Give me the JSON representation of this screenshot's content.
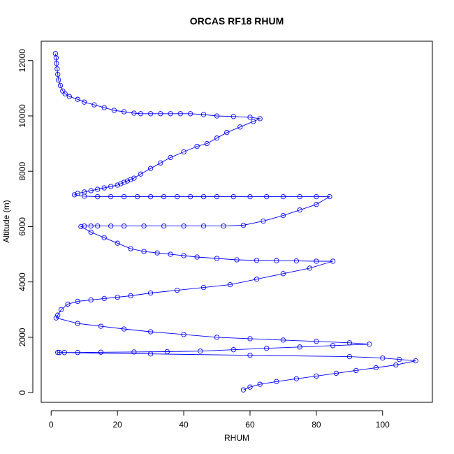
{
  "chart_data": {
    "type": "line",
    "title": "ORCAS RF18 RHUM",
    "xlabel": "RHUM",
    "ylabel": "Altitude (m)",
    "xlim": [
      -3,
      115
    ],
    "ylim": [
      -350,
      12700
    ],
    "x_ticks": [
      0,
      20,
      40,
      60,
      80,
      100
    ],
    "y_ticks": [
      0,
      2000,
      4000,
      6000,
      8000,
      10000,
      12000
    ],
    "grid": false,
    "legend": "none",
    "marker": "open-circle",
    "color": "#0000ff",
    "series": [
      {
        "x": [
          1.3,
          1.5,
          1.6,
          1.8,
          2.0,
          2.2,
          2.8,
          3.5,
          4.2,
          5.5,
          8.0,
          10.0,
          13.0,
          16.0,
          19.0,
          22.0,
          25.0,
          27.0,
          30.0,
          33.0,
          36.0,
          39.0,
          42.0,
          46.0,
          50.0,
          55.0,
          60.0,
          63.0,
          61.0,
          57.0,
          53.0,
          50.0,
          47.0,
          44.0,
          40.0,
          36.0,
          33.0,
          30.0,
          27.0,
          25.0,
          24.0,
          23.0,
          22.0,
          21.0,
          20.0,
          18.0,
          16.0,
          14.0,
          12.0,
          10.0,
          8.0,
          7.0,
          10.0,
          14.0,
          18.0,
          22.0,
          26.0,
          30.0,
          34.0,
          38.0,
          42.0,
          46.0,
          50.0,
          55.0,
          60.0,
          65.0,
          70.0,
          75.0,
          80.0,
          84.0,
          80.0,
          75.0,
          70.0,
          64.0,
          58.0,
          52.0,
          46.0,
          40.0,
          34.0,
          28.0,
          22.0,
          18.0,
          14.0,
          12.0,
          10.0,
          9.0,
          12.0,
          16.0,
          20.0,
          24.0,
          28.0,
          32.0,
          36.0,
          40.0,
          44.0,
          50.0,
          56.0,
          62.0,
          68.0,
          74.0,
          80.0,
          85.0,
          78.0,
          70.0,
          62.0,
          54.0,
          46.0,
          38.0,
          30.0,
          24.0,
          20.0,
          16.0,
          12.0,
          8.0,
          5.0,
          3.0,
          2.0,
          1.5,
          8.0,
          15.0,
          22.0,
          30.0,
          40.0,
          50.0,
          60.0,
          70.0,
          80.0,
          90.0,
          96.0,
          85.0,
          75.0,
          65.0,
          55.0,
          45.0,
          35.0,
          25.0,
          15.0,
          8.0,
          4.0,
          2.5,
          2.0,
          30.0,
          60.0,
          90.0,
          100.0,
          105.0,
          110.0,
          104.0,
          98.0,
          92.0,
          86.0,
          80.0,
          74.0,
          68.0,
          63.0,
          60.0,
          58.0
        ],
        "y": [
          12250,
          12100,
          11900,
          11700,
          11500,
          11300,
          11100,
          10900,
          10800,
          10700,
          10600,
          10500,
          10400,
          10300,
          10200,
          10150,
          10100,
          10080,
          10080,
          10080,
          10080,
          10080,
          10080,
          10050,
          10000,
          9980,
          9950,
          9900,
          9800,
          9600,
          9400,
          9200,
          9000,
          8900,
          8700,
          8500,
          8300,
          8100,
          7900,
          7750,
          7700,
          7650,
          7600,
          7550,
          7500,
          7450,
          7400,
          7350,
          7300,
          7250,
          7200,
          7150,
          7100,
          7080,
          7080,
          7080,
          7080,
          7080,
          7080,
          7080,
          7080,
          7080,
          7080,
          7080,
          7080,
          7080,
          7080,
          7080,
          7080,
          7080,
          6800,
          6600,
          6400,
          6200,
          6050,
          6020,
          6020,
          6020,
          6020,
          6020,
          6020,
          6020,
          6020,
          6020,
          6020,
          6000,
          5800,
          5600,
          5400,
          5200,
          5100,
          5050,
          5000,
          4950,
          4900,
          4850,
          4800,
          4780,
          4770,
          4760,
          4750,
          4750,
          4500,
          4300,
          4100,
          3900,
          3800,
          3700,
          3600,
          3500,
          3450,
          3400,
          3350,
          3300,
          3200,
          3000,
          2800,
          2700,
          2500,
          2400,
          2300,
          2200,
          2100,
          2000,
          1950,
          1900,
          1850,
          1800,
          1750,
          1700,
          1650,
          1600,
          1550,
          1500,
          1480,
          1470,
          1460,
          1450,
          1450,
          1450,
          1450,
          1400,
          1350,
          1300,
          1250,
          1200,
          1150,
          1000,
          900,
          800,
          700,
          600,
          500,
          400,
          300,
          200,
          100
        ]
      }
    ]
  }
}
